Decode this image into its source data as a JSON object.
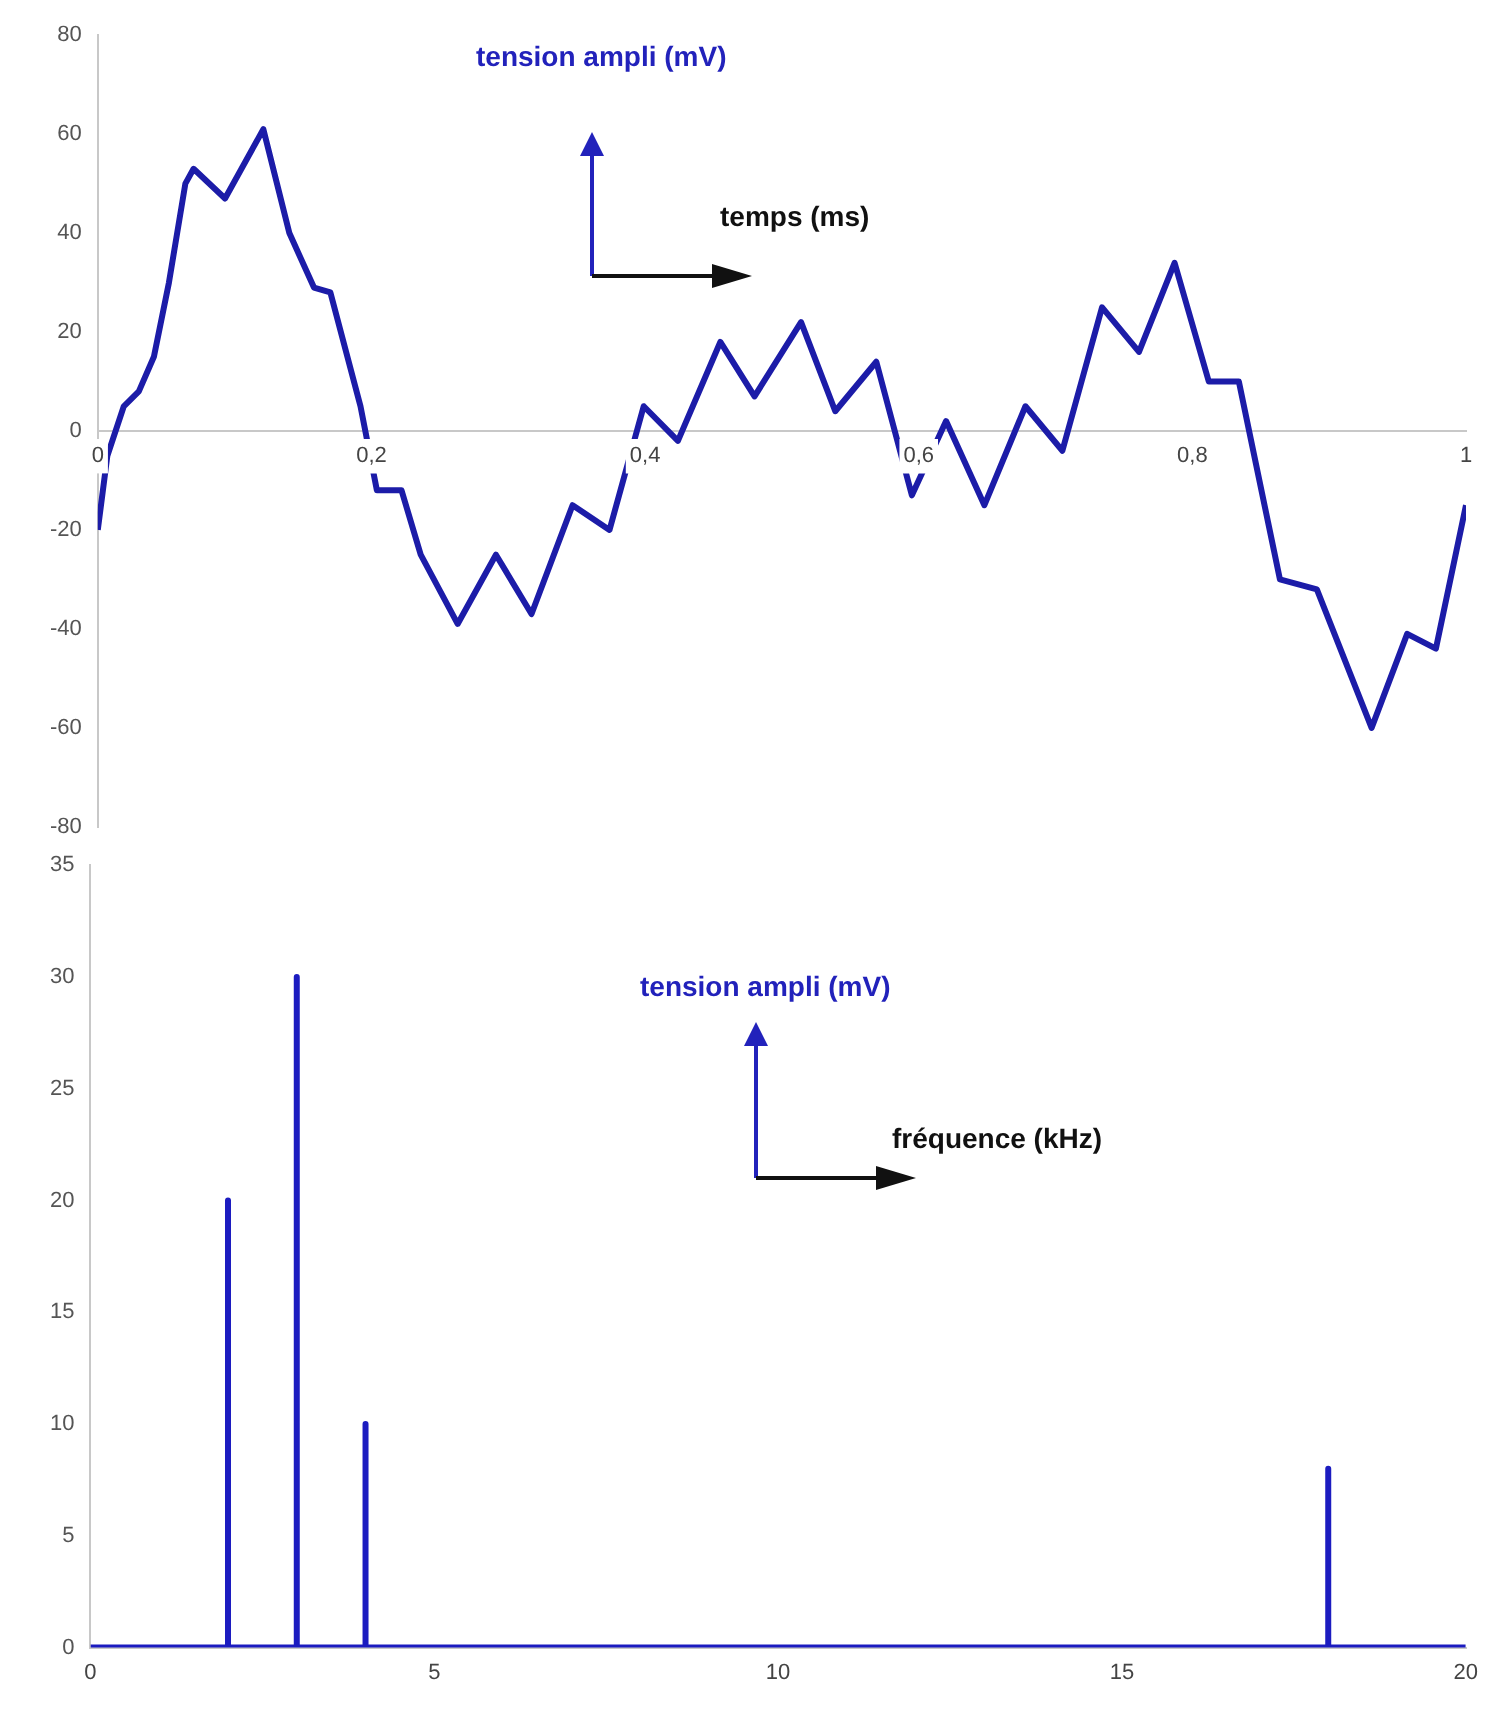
{
  "chart_data": [
    {
      "type": "line",
      "xlabel": "temps (ms)",
      "ylabel": "tension ampli (mV)",
      "xlim": [
        0,
        1
      ],
      "xticks": [
        0,
        {
          "value": 0.2,
          "label": "0,2"
        },
        {
          "value": 0.4,
          "label": "0,4"
        },
        {
          "value": 0.6,
          "label": "0,6"
        },
        {
          "value": 0.8,
          "label": "0,8"
        },
        1
      ],
      "ylim": [
        -80,
        80
      ],
      "yticks": [
        -80,
        -60,
        -40,
        -20,
        0,
        20,
        40,
        60,
        80
      ],
      "grid": false,
      "legend": false,
      "marker": "none",
      "series": [
        {
          "color": "#1c1ca8",
          "x": [
            0,
            0.007,
            0.019,
            0.03,
            0.041,
            0.052,
            0.064,
            0.07,
            0.093,
            0.121,
            0.14,
            0.158,
            0.17,
            0.192,
            0.204,
            0.222,
            0.236,
            0.263,
            0.291,
            0.317,
            0.347,
            0.374,
            0.399,
            0.424,
            0.455,
            0.48,
            0.514,
            0.539,
            0.569,
            0.595,
            0.62,
            0.648,
            0.678,
            0.705,
            0.734,
            0.761,
            0.787,
            0.812,
            0.834,
            0.864,
            0.891,
            0.931,
            0.957,
            0.978,
            1
          ],
          "values": [
            -20,
            -5,
            5,
            8,
            15,
            30,
            50,
            53,
            47,
            61,
            40,
            29,
            28,
            5,
            -12,
            -12,
            -25,
            -39,
            -25,
            -37,
            -15,
            -20,
            5,
            -2,
            18,
            7,
            22,
            4,
            14,
            -13,
            2,
            -15,
            5,
            -4,
            25,
            16,
            34,
            10,
            10,
            -30,
            -32,
            -60,
            -41,
            -44,
            -15
          ]
        }
      ]
    },
    {
      "type": "line",
      "xlabel": "fréquence (kHz)",
      "ylabel": "tension ampli (mV)",
      "xlim": [
        0,
        20
      ],
      "xticks": [
        0,
        5,
        10,
        15,
        20
      ],
      "ylim": [
        0,
        35
      ],
      "yticks": [
        0,
        5,
        10,
        15,
        20,
        25,
        30,
        35
      ],
      "grid": false,
      "legend": false,
      "marker": "none",
      "series": [
        {
          "color": "#1c1cc0",
          "x": [
            0,
            2,
            2,
            2,
            3,
            3,
            3,
            4,
            4,
            4,
            18,
            18,
            18,
            20
          ],
          "values": [
            0,
            0,
            20,
            0,
            0,
            30,
            0,
            0,
            10,
            0,
            0,
            8,
            0,
            0
          ]
        }
      ]
    }
  ]
}
